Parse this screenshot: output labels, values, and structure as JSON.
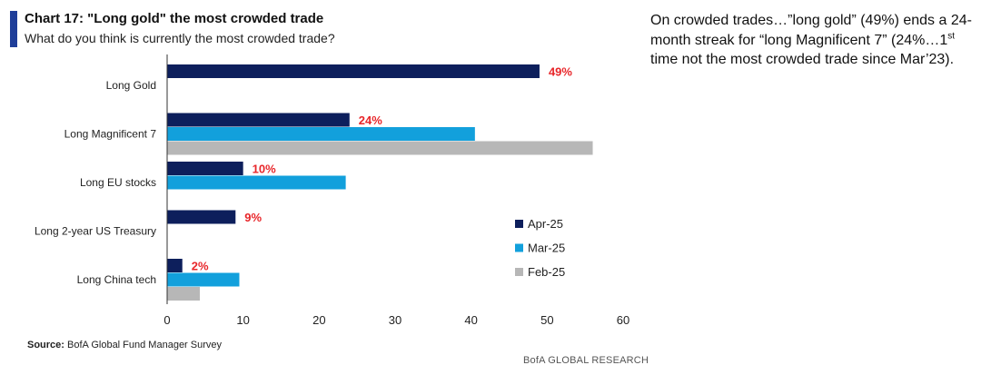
{
  "header": {
    "title": "Chart 17: \"Long gold\" the most crowded trade",
    "subtitle": "What do you think is currently the most crowded trade?"
  },
  "commentary": {
    "before_sup": "On crowded trades…”long gold” (49%) ends a 24-month streak for “long Magnificent 7” (24%…1",
    "sup": "st",
    "after_sup": " time not the most crowded trade since Mar’23)."
  },
  "source": {
    "label": "Source:",
    "text": "BofA Global Fund Manager Survey"
  },
  "footer": "BofA GLOBAL RESEARCH",
  "colors": {
    "accent": "#1f3e99",
    "label_red": "#e8262a"
  },
  "chart_data": {
    "type": "bar",
    "orientation": "horizontal",
    "categories": [
      "Long Gold",
      "Long Magnificent 7",
      "Long EU stocks",
      "Long 2-year US Treasury",
      "Long China tech"
    ],
    "series": [
      {
        "name": "Apr-25",
        "color": "#0d1f5c",
        "values": [
          49,
          24,
          10,
          9,
          2
        ],
        "labels": [
          "49%",
          "24%",
          "10%",
          "9%",
          "2%"
        ]
      },
      {
        "name": "Mar-25",
        "color": "#12a0dc",
        "values": [
          null,
          40.5,
          23.5,
          null,
          9.5
        ]
      },
      {
        "name": "Feb-25",
        "color": "#b7b7b7",
        "values": [
          null,
          56,
          null,
          null,
          4.3
        ]
      }
    ],
    "xlim": [
      0,
      60
    ],
    "xticks": [
      0,
      10,
      20,
      30,
      40,
      50,
      60
    ],
    "legend_position": "right",
    "grid": false
  }
}
